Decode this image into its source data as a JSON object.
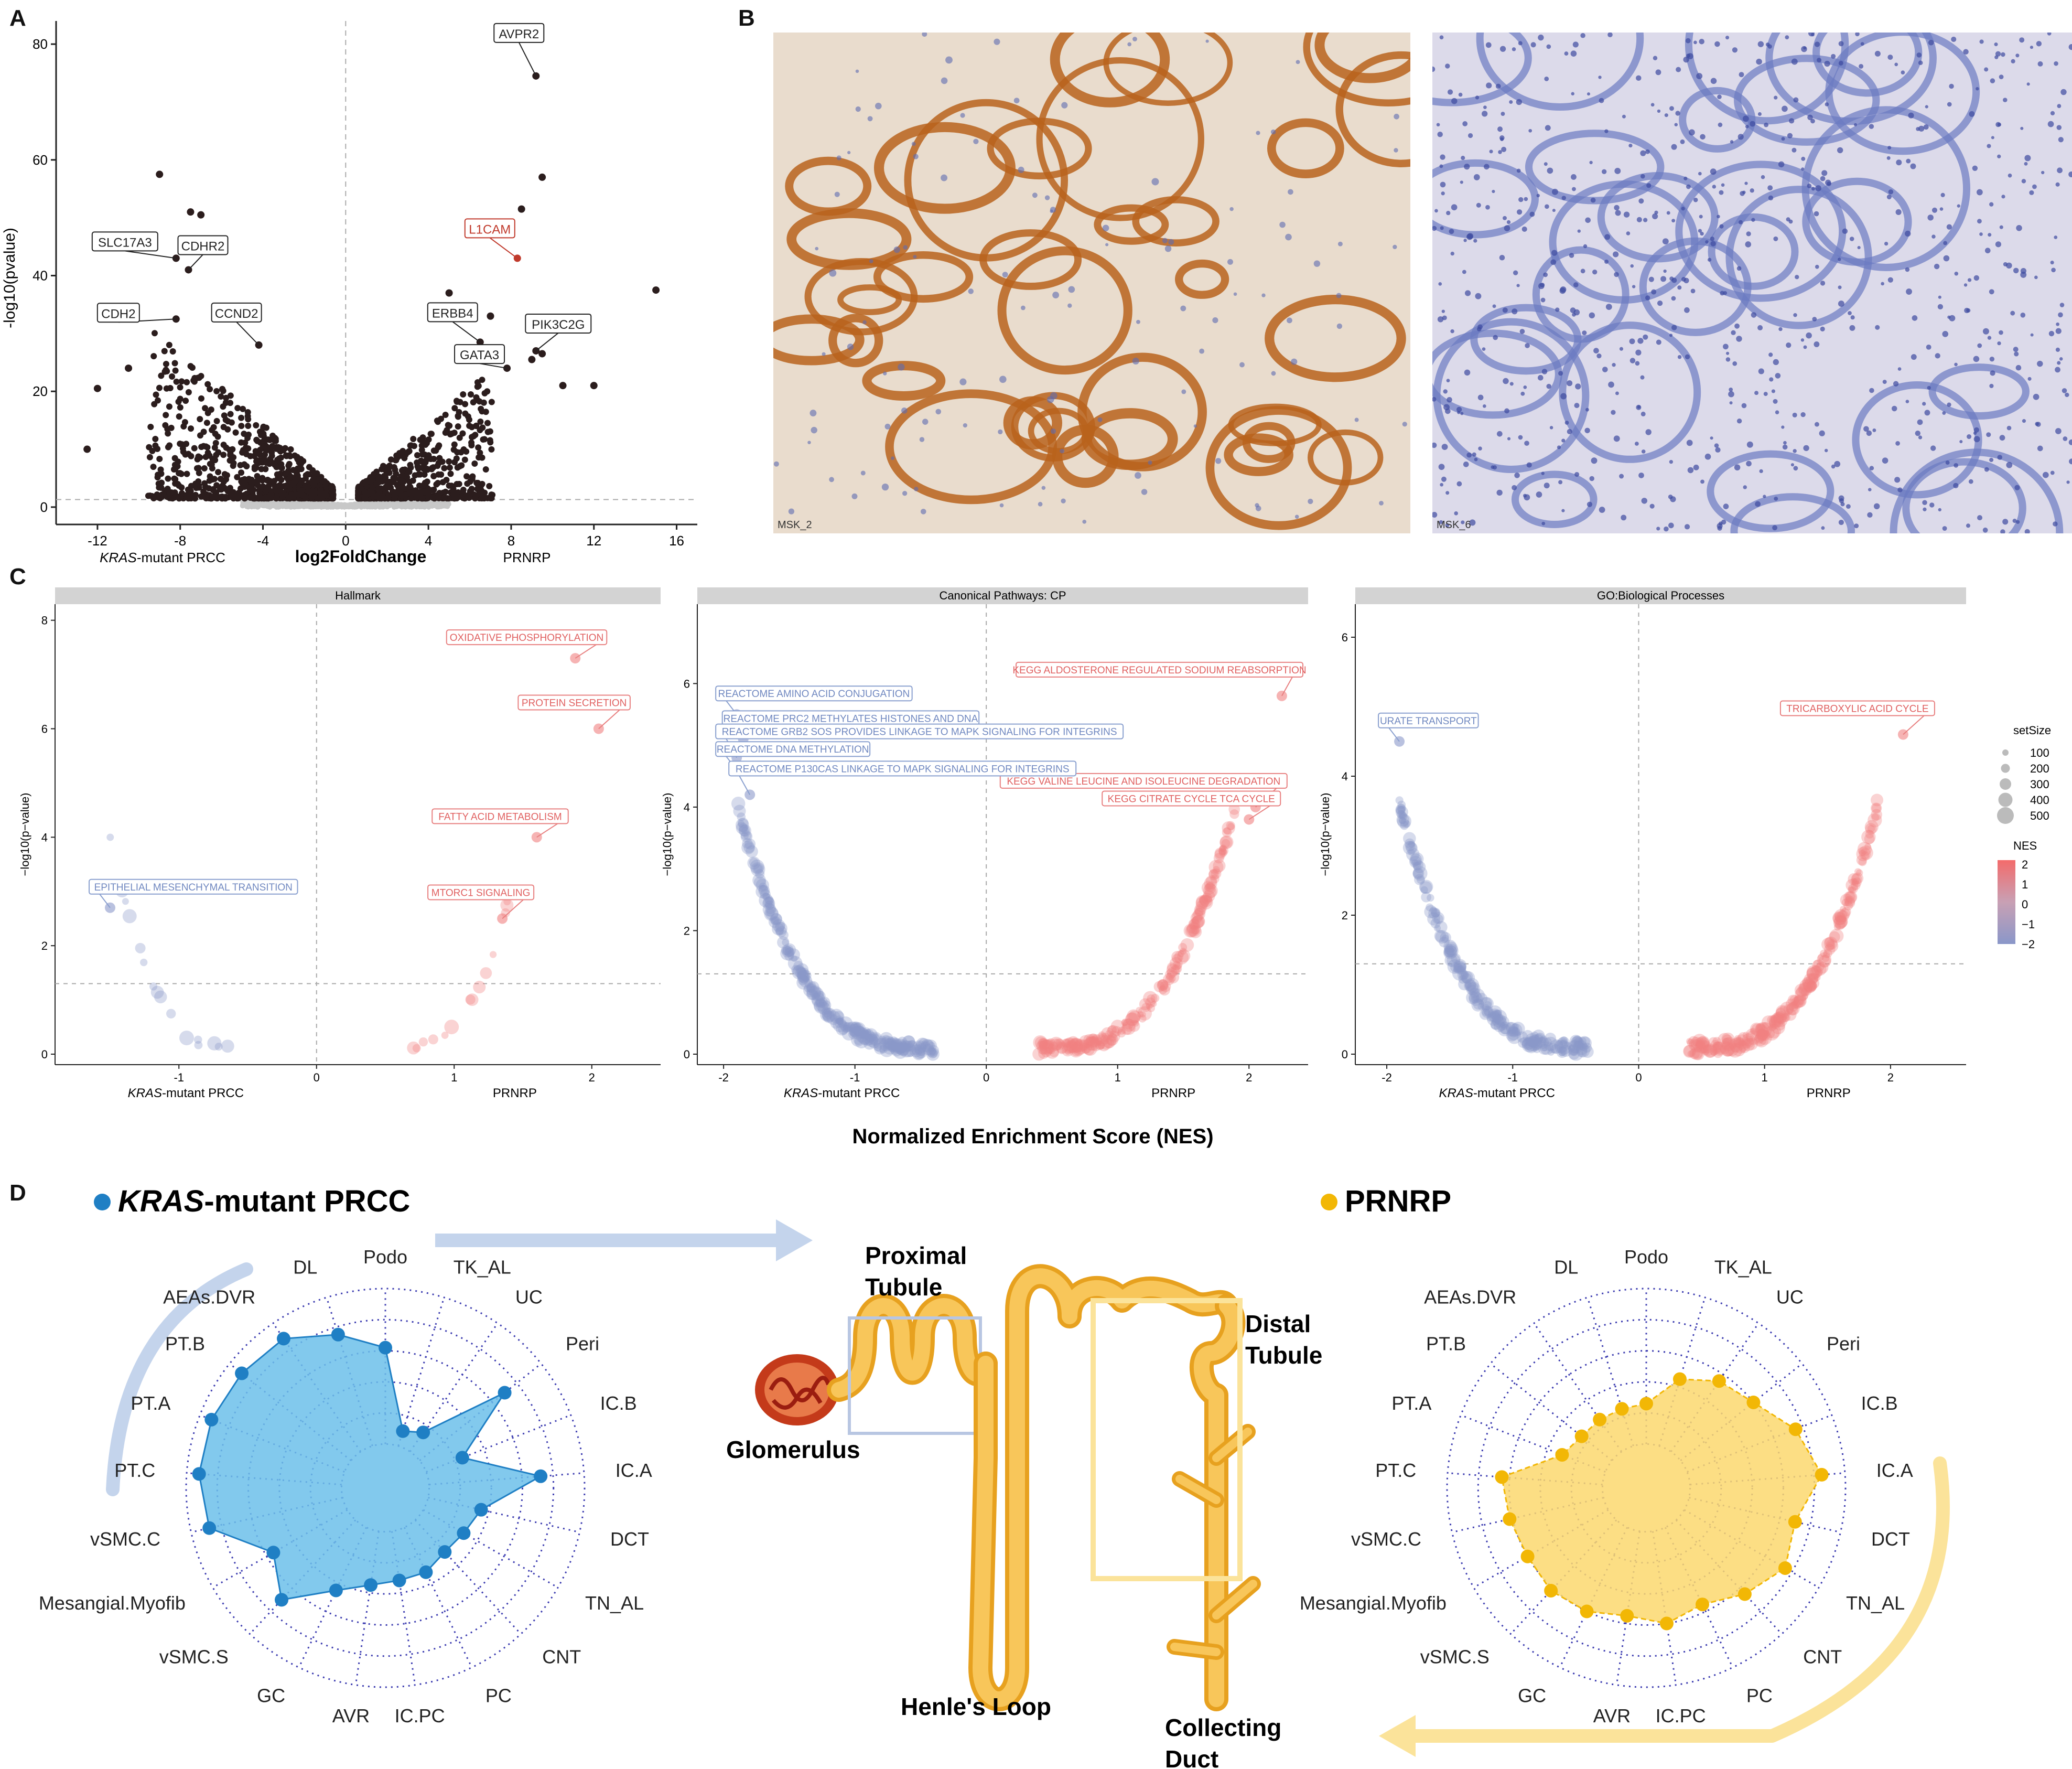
{
  "panels": {
    "A": "A",
    "B": "B",
    "C": "C",
    "D": "D"
  },
  "volcano": {
    "xlabel": "log2FoldChange",
    "ylabel": "-log10(pvalue)",
    "left_group": "KRAS",
    "left_group_suffix": "-mutant PRCC",
    "right_group": "PRNRP",
    "xticks": [
      "-12",
      "-8",
      "-4",
      "0",
      "4",
      "8",
      "12",
      "16"
    ],
    "yticks": [
      "0",
      "20",
      "40",
      "60",
      "80"
    ],
    "labels": [
      {
        "gene": "AVPR2",
        "x": 9.2,
        "y": 74.5,
        "color": "#222222"
      },
      {
        "gene": "L1CAM",
        "x": 8.3,
        "y": 43.0,
        "color": "#c0392b"
      },
      {
        "gene": "SLC17A3",
        "x": -8.2,
        "y": 43.0,
        "color": "#222222"
      },
      {
        "gene": "CDHR2",
        "x": -7.6,
        "y": 41.0,
        "color": "#222222"
      },
      {
        "gene": "CDH2",
        "x": -8.2,
        "y": 32.5,
        "color": "#222222"
      },
      {
        "gene": "CCND2",
        "x": -4.2,
        "y": 28.0,
        "color": "#222222"
      },
      {
        "gene": "ERBB4",
        "x": 6.5,
        "y": 28.5,
        "color": "#222222"
      },
      {
        "gene": "PIK3C2G",
        "x": 9.2,
        "y": 27.0,
        "color": "#222222"
      },
      {
        "gene": "GATA3",
        "x": 7.8,
        "y": 24.0,
        "color": "#222222"
      }
    ]
  },
  "ihc": {
    "left_caption": "MSK_2",
    "right_caption": "MSK_6"
  },
  "gsea": {
    "xlabel": "Normalized Enrichment Score (NES)",
    "ylabel": "−log10(p−value)",
    "left_group": "KRAS",
    "left_group_suffix": "-mutant PRCC",
    "right_group": "PRNRP",
    "facets": [
      {
        "title": "Hallmark",
        "xticks": [
          "-1",
          "0",
          "1",
          "2"
        ],
        "xmin": -1.9,
        "xmax": 2.5,
        "yticks": [
          "0",
          "2",
          "4",
          "6",
          "8"
        ],
        "ymax": 8.2,
        "labels": [
          {
            "text": "OXIDATIVE PHOSPHORYLATION",
            "nes": 1.88,
            "p": 7.3,
            "side": "pos"
          },
          {
            "text": "PROTEIN SECRETION",
            "nes": 2.05,
            "p": 6.0,
            "side": "pos"
          },
          {
            "text": "FATTY ACID METABOLISM",
            "nes": 1.6,
            "p": 4.0,
            "side": "pos"
          },
          {
            "text": "MTORC1 SIGNALING",
            "nes": 1.35,
            "p": 2.5,
            "side": "pos"
          },
          {
            "text": "EPITHELIAL MESENCHYMAL TRANSITION",
            "nes": -1.5,
            "p": 2.7,
            "side": "neg"
          }
        ]
      },
      {
        "title": "Canonical Pathways: CP",
        "xticks": [
          "-2",
          "-1",
          "0",
          "1",
          "2"
        ],
        "xmin": -2.2,
        "xmax": 2.45,
        "yticks": [
          "0",
          "2",
          "4",
          "6"
        ],
        "ymax": 7.2,
        "labels": [
          {
            "text": "REACTOME AMINO ACID CONJUGATION",
            "nes": -1.9,
            "p": 5.5,
            "side": "neg"
          },
          {
            "text": "KEGG ALDOSTERONE REGULATED SODIUM REABSORPTION",
            "nes": 2.25,
            "p": 5.8,
            "side": "pos"
          },
          {
            "text": "REACTOME PRC2 METHYLATES HISTONES AND DNA",
            "nes": -1.85,
            "p": 5.1,
            "side": "neg"
          },
          {
            "text": "REACTOME GRB2 SOS PROVIDES LINKAGE TO MAPK SIGNALING FOR INTEGRINS",
            "nes": -1.9,
            "p": 4.8,
            "side": "neg"
          },
          {
            "text": "REACTOME DNA METHYLATION",
            "nes": -1.9,
            "p": 4.6,
            "side": "neg"
          },
          {
            "text": "KEGG VALINE LEUCINE AND ISOLEUCINE DEGRADATION",
            "nes": 2.05,
            "p": 4.0,
            "side": "pos"
          },
          {
            "text": "KEGG CITRATE CYCLE TCA CYCLE",
            "nes": 2.0,
            "p": 3.8,
            "side": "pos"
          },
          {
            "text": "REACTOME P130CAS LINKAGE TO MAPK SIGNALING FOR INTEGRINS",
            "nes": -1.8,
            "p": 4.2,
            "side": "neg"
          }
        ]
      },
      {
        "title": "GO:Biological Processes",
        "xticks": [
          "-2",
          "-1",
          "0",
          "1",
          "2"
        ],
        "xmin": -2.25,
        "xmax": 2.6,
        "yticks": [
          "0",
          "2",
          "4",
          "6"
        ],
        "ymax": 6.4,
        "labels": [
          {
            "text": "URATE TRANSPORT",
            "nes": -1.9,
            "p": 4.5,
            "side": "neg"
          },
          {
            "text": "TRICARBOXYLIC ACID CYCLE",
            "nes": 2.1,
            "p": 4.6,
            "side": "pos"
          }
        ]
      }
    ],
    "legend": {
      "size_title": "setSize",
      "size_values": [
        "100",
        "200",
        "300",
        "400",
        "500"
      ],
      "color_title": "NES",
      "color_ticks": [
        "2",
        "1",
        "0",
        "−1",
        "−2"
      ]
    }
  },
  "radar": {
    "axes": [
      "Podo",
      "TK_AL",
      "UC",
      "Peri",
      "IC.B",
      "IC.A",
      "DCT",
      "TN_AL",
      "CNT",
      "PC",
      "IC.PC",
      "AVR",
      "GC",
      "vSMC.S",
      "Mesangial.Myofib",
      "vSMC.C",
      "PT.C",
      "PT.A",
      "PT.B",
      "AEAs.DVR",
      "DL"
    ],
    "kras": {
      "title_italic": "KRAS",
      "title_rest": "-mutant PRCC",
      "color": "#1f7fc4",
      "fill": "#6cc0ea",
      "values": [
        0.62,
        0.1,
        0.15,
        0.7,
        0.25,
        0.72,
        0.35,
        0.3,
        0.28,
        0.32,
        0.32,
        0.35,
        0.45,
        0.7,
        0.55,
        0.88,
        0.92,
        0.92,
        0.9,
        0.88,
        0.75
      ]
    },
    "prnrp": {
      "title": "PRNRP",
      "color": "#f2b705",
      "fill": "#fbd86e",
      "values": [
        0.26,
        0.45,
        0.55,
        0.6,
        0.75,
        0.85,
        0.7,
        0.75,
        0.65,
        0.55,
        0.6,
        0.55,
        0.6,
        0.62,
        0.6,
        0.62,
        0.65,
        0.3,
        0.25,
        0.25,
        0.25
      ]
    }
  },
  "kidney": {
    "proximal_line1": "Proximal",
    "proximal_line2": "Tubule",
    "distal_line1": "Distal",
    "distal_line2": "Tubule",
    "glomerulus": "Glomerulus",
    "henle": "Henle's Loop",
    "collecting_line1": "Collecting",
    "collecting_line2": "Duct"
  },
  "colors": {
    "pos": "#f08080",
    "neg": "#8a97c9",
    "kras": "#1f7fc4",
    "prnrp": "#f2b705"
  }
}
